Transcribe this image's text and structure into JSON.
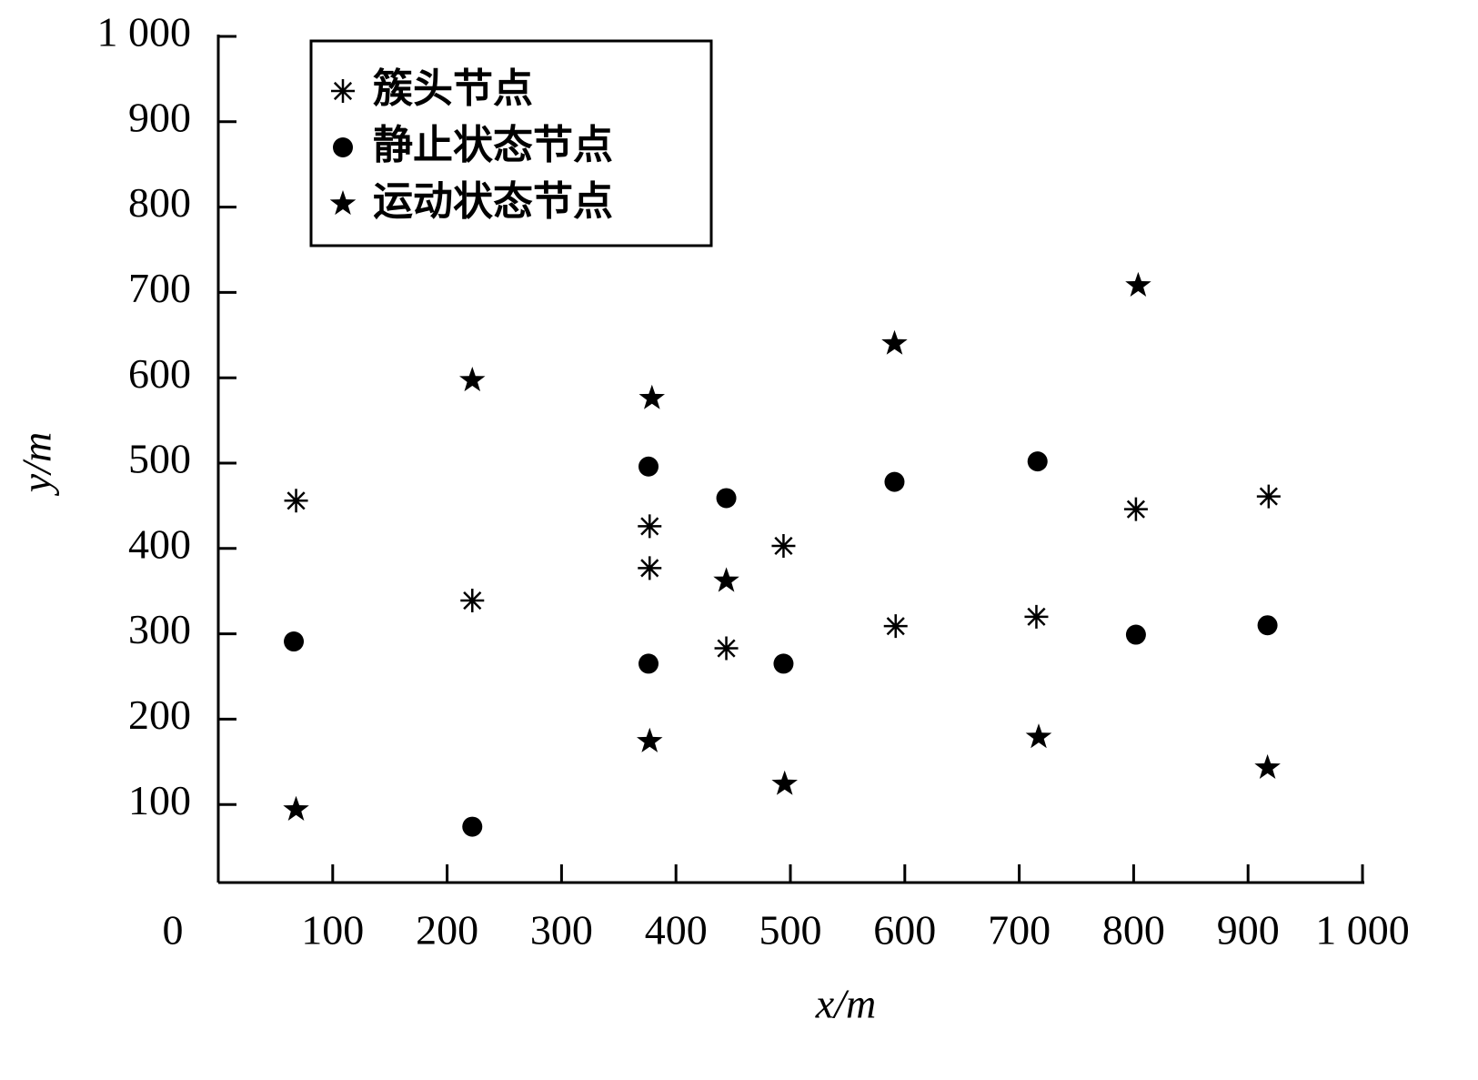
{
  "chart_data": {
    "type": "scatter",
    "x_label": "x/m",
    "y_label": "y/m",
    "xlim": [
      0,
      1000
    ],
    "ylim": [
      0,
      1000
    ],
    "xticks": [
      0,
      100,
      200,
      300,
      400,
      500,
      600,
      700,
      800,
      900,
      {
        "value": 1000,
        "label": "1 000"
      }
    ],
    "yticks": [
      100,
      200,
      300,
      400,
      500,
      600,
      700,
      800,
      900,
      {
        "value": 1000,
        "label": "1 000"
      }
    ],
    "legend": "upper left",
    "series": [
      {
        "name": "簇头节点",
        "color": "#000000",
        "marker": "asterisk",
        "x": [
          68,
          222,
          377,
          377,
          444,
          494,
          592,
          715,
          802,
          918
        ],
        "values": [
          456,
          339,
          426,
          377,
          283,
          403,
          309,
          320,
          446,
          461
        ]
      },
      {
        "name": "静止状态节点",
        "color": "#000000",
        "marker": "circle",
        "x": [
          66,
          222,
          376,
          376,
          444,
          494,
          591,
          716,
          802,
          917
        ],
        "values": [
          291,
          74,
          496,
          265,
          459,
          265,
          478,
          502,
          299,
          310
        ]
      },
      {
        "name": "运动状态节点",
        "color": "#000000",
        "marker": "star",
        "x": [
          68,
          222,
          379,
          591,
          804,
          444,
          377,
          495,
          717,
          917
        ],
        "values": [
          94,
          597,
          576,
          640,
          708,
          362,
          174,
          124,
          179,
          143
        ]
      }
    ]
  }
}
